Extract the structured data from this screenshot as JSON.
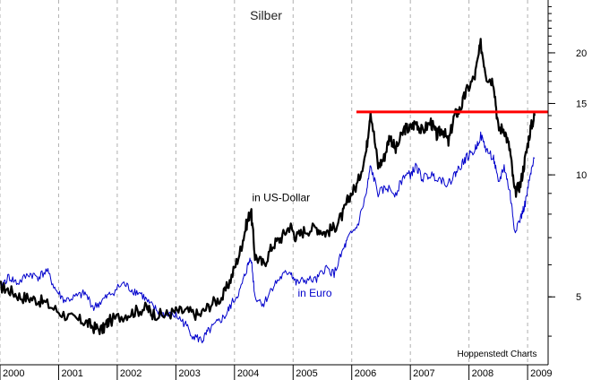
{
  "chart_data": {
    "type": "line",
    "title": "Silber",
    "credit": "Hoppenstedt Charts",
    "y_scale": "log",
    "ylim": [
      3.4,
      27
    ],
    "xlim": [
      2000.0,
      2009.35
    ],
    "y_ticks": [
      5,
      10,
      15,
      20
    ],
    "x_ticks": [
      2000,
      2001,
      2002,
      2003,
      2004,
      2005,
      2006,
      2007,
      2008,
      2009
    ],
    "x_tick_labels": [
      "2000",
      "2001",
      "2002",
      "2003",
      "2004",
      "2005",
      "2006",
      "2007",
      "2008",
      "2009"
    ],
    "grid": "vertical dashed",
    "series": [
      {
        "name": "in US-Dollar",
        "color": "#000000",
        "points": [
          [
            2000.0,
            5.3
          ],
          [
            2000.15,
            5.2
          ],
          [
            2000.35,
            5.0
          ],
          [
            2000.55,
            4.95
          ],
          [
            2000.75,
            4.85
          ],
          [
            2001.0,
            4.6
          ],
          [
            2001.25,
            4.4
          ],
          [
            2001.45,
            4.35
          ],
          [
            2001.6,
            4.2
          ],
          [
            2001.75,
            4.15
          ],
          [
            2001.85,
            4.35
          ],
          [
            2002.1,
            4.5
          ],
          [
            2002.3,
            4.6
          ],
          [
            2002.5,
            4.7
          ],
          [
            2002.6,
            4.55
          ],
          [
            2002.8,
            4.5
          ],
          [
            2003.0,
            4.6
          ],
          [
            2003.2,
            4.6
          ],
          [
            2003.4,
            4.5
          ],
          [
            2003.6,
            4.8
          ],
          [
            2003.8,
            5.0
          ],
          [
            2003.95,
            5.6
          ],
          [
            2004.1,
            6.5
          ],
          [
            2004.2,
            7.5
          ],
          [
            2004.28,
            8.2
          ],
          [
            2004.35,
            6.3
          ],
          [
            2004.5,
            6.0
          ],
          [
            2004.65,
            6.7
          ],
          [
            2004.8,
            7.0
          ],
          [
            2004.95,
            7.5
          ],
          [
            2005.05,
            7.0
          ],
          [
            2005.2,
            7.3
          ],
          [
            2005.4,
            7.4
          ],
          [
            2005.55,
            7.2
          ],
          [
            2005.7,
            7.4
          ],
          [
            2005.85,
            8.0
          ],
          [
            2005.95,
            8.8
          ],
          [
            2006.1,
            9.5
          ],
          [
            2006.25,
            11.5
          ],
          [
            2006.32,
            14.5
          ],
          [
            2006.45,
            10.5
          ],
          [
            2006.55,
            11.0
          ],
          [
            2006.65,
            12.5
          ],
          [
            2006.75,
            11.5
          ],
          [
            2006.9,
            13.0
          ],
          [
            2007.0,
            13.0
          ],
          [
            2007.1,
            13.5
          ],
          [
            2007.2,
            12.8
          ],
          [
            2007.35,
            13.5
          ],
          [
            2007.45,
            12.5
          ],
          [
            2007.55,
            13.0
          ],
          [
            2007.65,
            12.0
          ],
          [
            2007.75,
            14.0
          ],
          [
            2007.85,
            14.5
          ],
          [
            2007.95,
            16.0
          ],
          [
            2008.1,
            17.5
          ],
          [
            2008.2,
            21.0
          ],
          [
            2008.3,
            17.5
          ],
          [
            2008.42,
            17.0
          ],
          [
            2008.5,
            13.0
          ],
          [
            2008.6,
            13.0
          ],
          [
            2008.7,
            11.5
          ],
          [
            2008.78,
            9.0
          ],
          [
            2008.88,
            9.5
          ],
          [
            2008.96,
            11.0
          ],
          [
            2009.05,
            13.0
          ],
          [
            2009.12,
            14.0
          ]
        ]
      },
      {
        "name": "in Euro",
        "color": "#0000cc",
        "points": [
          [
            2000.0,
            5.3
          ],
          [
            2000.15,
            5.6
          ],
          [
            2000.3,
            5.4
          ],
          [
            2000.5,
            5.7
          ],
          [
            2000.65,
            5.6
          ],
          [
            2000.8,
            5.8
          ],
          [
            2000.95,
            5.2
          ],
          [
            2001.1,
            4.9
          ],
          [
            2001.3,
            5.0
          ],
          [
            2001.45,
            5.1
          ],
          [
            2001.6,
            4.7
          ],
          [
            2001.75,
            4.9
          ],
          [
            2001.9,
            5.1
          ],
          [
            2002.1,
            5.4
          ],
          [
            2002.25,
            5.2
          ],
          [
            2002.4,
            5.1
          ],
          [
            2002.55,
            4.8
          ],
          [
            2002.7,
            4.6
          ],
          [
            2002.85,
            4.5
          ],
          [
            2003.0,
            4.5
          ],
          [
            2003.15,
            4.3
          ],
          [
            2003.3,
            4.0
          ],
          [
            2003.45,
            3.9
          ],
          [
            2003.55,
            4.1
          ],
          [
            2003.7,
            4.3
          ],
          [
            2003.85,
            4.5
          ],
          [
            2003.95,
            4.8
          ],
          [
            2004.1,
            5.2
          ],
          [
            2004.2,
            5.8
          ],
          [
            2004.28,
            6.3
          ],
          [
            2004.35,
            5.0
          ],
          [
            2004.5,
            4.8
          ],
          [
            2004.65,
            5.3
          ],
          [
            2004.8,
            5.6
          ],
          [
            2004.95,
            5.8
          ],
          [
            2005.05,
            5.4
          ],
          [
            2005.2,
            5.5
          ],
          [
            2005.4,
            5.5
          ],
          [
            2005.55,
            5.9
          ],
          [
            2005.7,
            5.7
          ],
          [
            2005.85,
            6.5
          ],
          [
            2005.95,
            7.0
          ],
          [
            2006.1,
            7.5
          ],
          [
            2006.25,
            9.0
          ],
          [
            2006.32,
            10.5
          ],
          [
            2006.45,
            9.0
          ],
          [
            2006.6,
            9.3
          ],
          [
            2006.75,
            9.0
          ],
          [
            2006.9,
            10.0
          ],
          [
            2007.0,
            10.0
          ],
          [
            2007.1,
            10.5
          ],
          [
            2007.2,
            9.8
          ],
          [
            2007.35,
            10.0
          ],
          [
            2007.5,
            9.8
          ],
          [
            2007.65,
            9.5
          ],
          [
            2007.75,
            10.0
          ],
          [
            2007.85,
            10.5
          ],
          [
            2007.95,
            11.0
          ],
          [
            2008.1,
            11.5
          ],
          [
            2008.2,
            12.5
          ],
          [
            2008.3,
            11.5
          ],
          [
            2008.42,
            11.0
          ],
          [
            2008.5,
            9.5
          ],
          [
            2008.6,
            10.5
          ],
          [
            2008.7,
            9.0
          ],
          [
            2008.78,
            7.3
          ],
          [
            2008.88,
            7.8
          ],
          [
            2008.96,
            8.5
          ],
          [
            2009.05,
            10.0
          ],
          [
            2009.12,
            11.0
          ]
        ]
      }
    ],
    "resistance_line": {
      "value": 14.3,
      "from": 2006.08,
      "to": 2009.35,
      "color": "#ff0000"
    },
    "annotations": [
      {
        "text": "in US-Dollar",
        "color": "#000000",
        "x": 2004.3,
        "y": 8.6
      },
      {
        "text": "in Euro",
        "color": "#0000cc",
        "x": 2005.08,
        "y": 5.0
      }
    ]
  }
}
